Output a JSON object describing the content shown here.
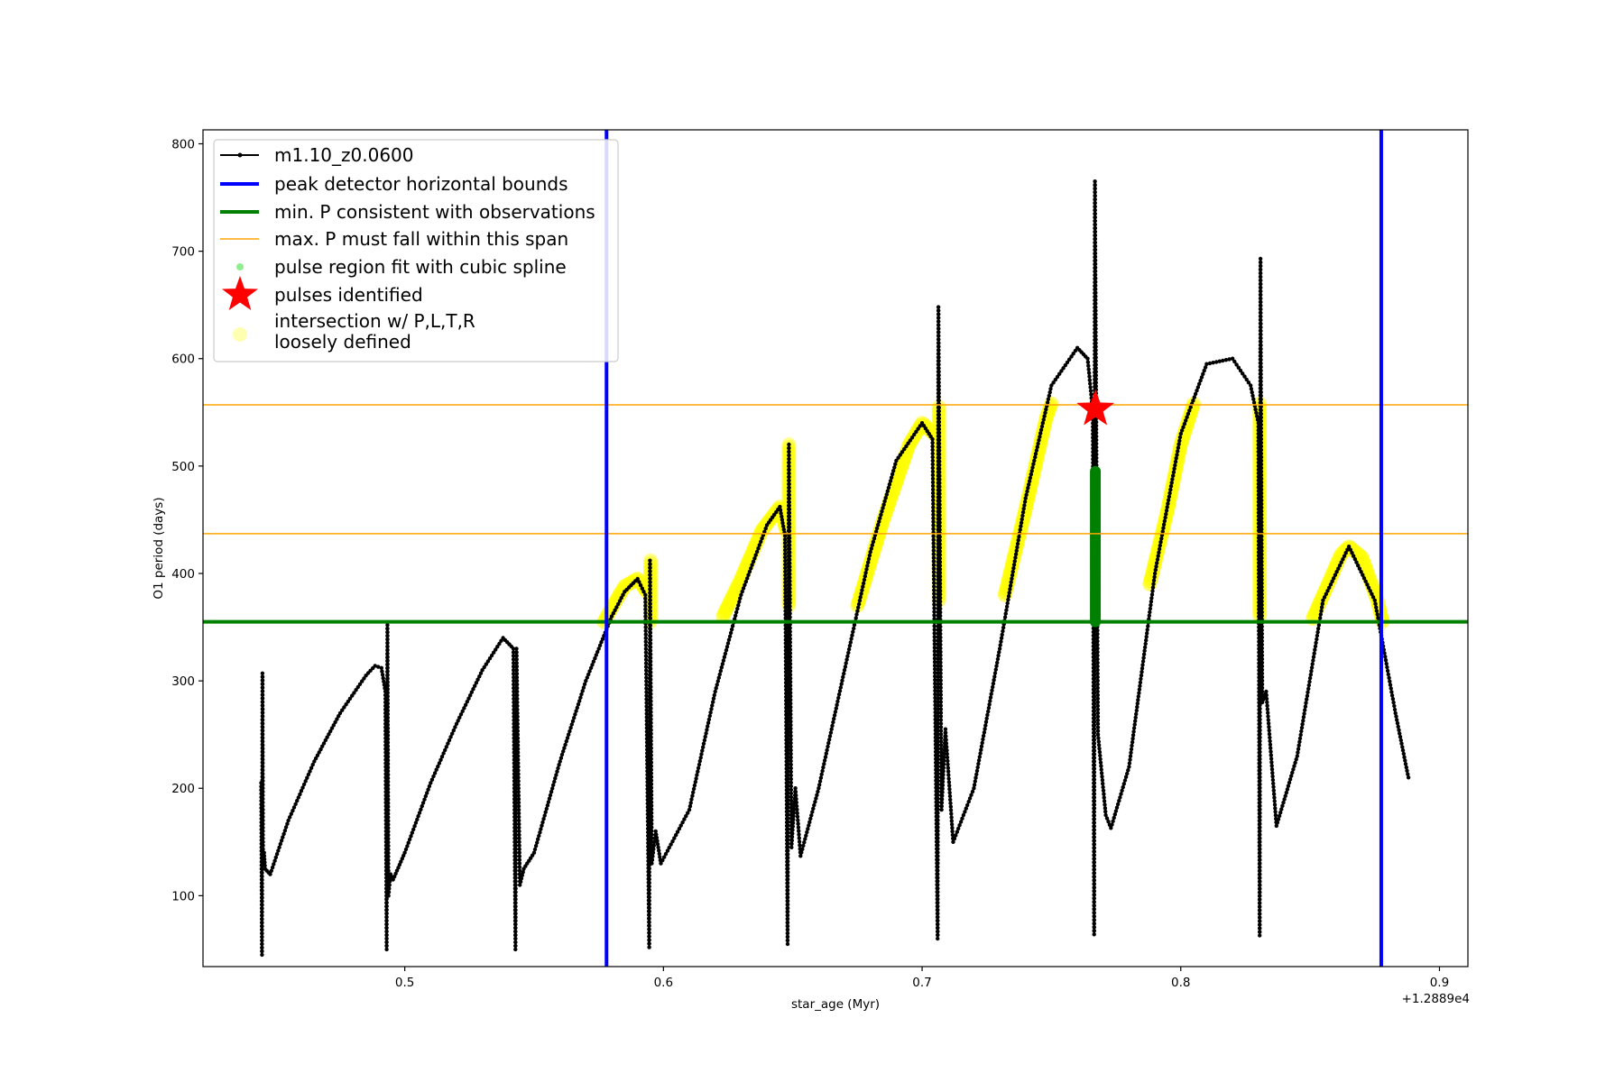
{
  "chart_data": {
    "type": "line",
    "xlabel": "star_age (Myr)",
    "ylabel": "O1 period (days)",
    "x_offset_label": "+1.2889e4",
    "xlim": [
      0.422,
      0.911
    ],
    "ylim": [
      34,
      813
    ],
    "xticks": [
      0.5,
      0.6,
      0.7,
      0.8,
      0.9
    ],
    "xtick_labels": [
      "0.5",
      "0.6",
      "0.7",
      "0.8",
      "0.9"
    ],
    "yticks": [
      100,
      200,
      300,
      400,
      500,
      600,
      700,
      800
    ],
    "ytick_labels": [
      "100",
      "200",
      "300",
      "400",
      "500",
      "600",
      "700",
      "800"
    ],
    "grid": false,
    "legend_placement": "top-left",
    "colors": {
      "model": "#000000",
      "bounds": "#0000ff",
      "minP": "#008000",
      "maxP": "#ffa500",
      "spline": "#90ee90",
      "pulse": "#ff0000",
      "intersection": "#ffff00"
    },
    "legend": [
      {
        "label": "m1.10_z0.0600",
        "kind": "line-dot"
      },
      {
        "label": "peak detector horizontal bounds",
        "kind": "thick-blue"
      },
      {
        "label": "min. P consistent with observations",
        "kind": "thick-green"
      },
      {
        "label": "max. P must fall within this span",
        "kind": "thin-orange"
      },
      {
        "label": "pulse region fit with cubic spline",
        "kind": "green-dot"
      },
      {
        "label": "pulses identified",
        "kind": "red-star"
      },
      {
        "label": "intersection w/ P,L,T,R",
        "label2": "loosely defined",
        "kind": "yellow-dot"
      }
    ],
    "vertical_bounds": [
      0.578,
      0.8775
    ],
    "min_period": 355,
    "max_period_span": [
      437,
      557
    ],
    "pulse_star": {
      "x": 0.767,
      "y": 553
    },
    "series": [
      {
        "name": "m1.10_z0.0600",
        "points": [
          [
            0.4445,
            205
          ],
          [
            0.4448,
            45
          ],
          [
            0.445,
            307
          ],
          [
            0.4452,
            130
          ],
          [
            0.4456,
            140
          ],
          [
            0.446,
            125
          ],
          [
            0.448,
            120
          ],
          [
            0.455,
            170
          ],
          [
            0.465,
            225
          ],
          [
            0.475,
            270
          ],
          [
            0.485,
            305
          ],
          [
            0.4885,
            314
          ],
          [
            0.491,
            312
          ],
          [
            0.4925,
            290
          ],
          [
            0.493,
            50
          ],
          [
            0.4933,
            352
          ],
          [
            0.4937,
            100
          ],
          [
            0.4945,
            120
          ],
          [
            0.4955,
            115
          ],
          [
            0.5,
            140
          ],
          [
            0.51,
            205
          ],
          [
            0.52,
            260
          ],
          [
            0.53,
            310
          ],
          [
            0.538,
            340
          ],
          [
            0.542,
            330
          ],
          [
            0.5428,
            50
          ],
          [
            0.5432,
            330
          ],
          [
            0.5445,
            110
          ],
          [
            0.546,
            125
          ],
          [
            0.55,
            140
          ],
          [
            0.56,
            225
          ],
          [
            0.57,
            300
          ],
          [
            0.58,
            360
          ],
          [
            0.585,
            383
          ],
          [
            0.59,
            395
          ],
          [
            0.593,
            380
          ],
          [
            0.5945,
            52
          ],
          [
            0.5948,
            412
          ],
          [
            0.5955,
            130
          ],
          [
            0.597,
            160
          ],
          [
            0.599,
            130
          ],
          [
            0.61,
            180
          ],
          [
            0.62,
            290
          ],
          [
            0.63,
            380
          ],
          [
            0.64,
            445
          ],
          [
            0.645,
            462
          ],
          [
            0.647,
            435
          ],
          [
            0.648,
            55
          ],
          [
            0.6485,
            520
          ],
          [
            0.6495,
            145
          ],
          [
            0.651,
            200
          ],
          [
            0.653,
            137
          ],
          [
            0.66,
            200
          ],
          [
            0.67,
            310
          ],
          [
            0.68,
            420
          ],
          [
            0.69,
            505
          ],
          [
            0.7,
            540
          ],
          [
            0.704,
            525
          ],
          [
            0.706,
            60
          ],
          [
            0.7063,
            648
          ],
          [
            0.7075,
            180
          ],
          [
            0.709,
            255
          ],
          [
            0.712,
            150
          ],
          [
            0.72,
            200
          ],
          [
            0.73,
            330
          ],
          [
            0.74,
            470
          ],
          [
            0.75,
            575
          ],
          [
            0.76,
            610
          ],
          [
            0.764,
            600
          ],
          [
            0.766,
            550
          ],
          [
            0.7665,
            64
          ],
          [
            0.7668,
            765
          ],
          [
            0.768,
            250
          ],
          [
            0.771,
            175
          ],
          [
            0.773,
            163
          ],
          [
            0.78,
            220
          ],
          [
            0.79,
            400
          ],
          [
            0.8,
            530
          ],
          [
            0.81,
            595
          ],
          [
            0.82,
            600
          ],
          [
            0.827,
            575
          ],
          [
            0.83,
            540
          ],
          [
            0.8305,
            63
          ],
          [
            0.8308,
            693
          ],
          [
            0.8315,
            280
          ],
          [
            0.833,
            290
          ],
          [
            0.837,
            165
          ],
          [
            0.845,
            230
          ],
          [
            0.855,
            375
          ],
          [
            0.865,
            425
          ],
          [
            0.875,
            375
          ],
          [
            0.883,
            270
          ],
          [
            0.888,
            210
          ]
        ]
      },
      {
        "name": "pulse region fit with cubic spline",
        "points": [
          [
            0.767,
            355
          ],
          [
            0.767,
            380
          ],
          [
            0.767,
            405
          ],
          [
            0.767,
            430
          ],
          [
            0.767,
            455
          ],
          [
            0.767,
            480
          ],
          [
            0.767,
            495
          ]
        ]
      },
      {
        "name": "intersection w/ P,L,T,R",
        "arches": [
          [
            [
              0.577,
              355
            ],
            [
              0.58,
              368
            ],
            [
              0.585,
              388
            ],
            [
              0.59,
              395
            ],
            [
              0.5935,
              383
            ]
          ],
          [
            [
              0.623,
              360
            ],
            [
              0.63,
              395
            ],
            [
              0.638,
              440
            ],
            [
              0.645,
              462
            ],
            [
              0.6475,
              440
            ]
          ],
          [
            [
              0.675,
              370
            ],
            [
              0.685,
              450
            ],
            [
              0.695,
              520
            ],
            [
              0.7,
              540
            ],
            [
              0.7045,
              530
            ]
          ],
          [
            [
              0.732,
              380
            ],
            [
              0.74,
              460
            ],
            [
              0.748,
              545
            ],
            [
              0.75,
              558
            ]
          ],
          [
            [
              0.788,
              390
            ],
            [
              0.795,
              460
            ],
            [
              0.8,
              520
            ],
            [
              0.805,
              558
            ]
          ],
          [
            [
              0.851,
              358
            ],
            [
              0.856,
              385
            ],
            [
              0.862,
              418
            ],
            [
              0.865,
              425
            ],
            [
              0.87,
              415
            ],
            [
              0.876,
              375
            ],
            [
              0.878,
              355
            ]
          ]
        ],
        "columns": [
          [
            0.595,
            355,
            412
          ],
          [
            0.6485,
            370,
            520
          ],
          [
            0.7065,
            375,
            555
          ],
          [
            0.8305,
            360,
            558
          ]
        ]
      }
    ]
  }
}
